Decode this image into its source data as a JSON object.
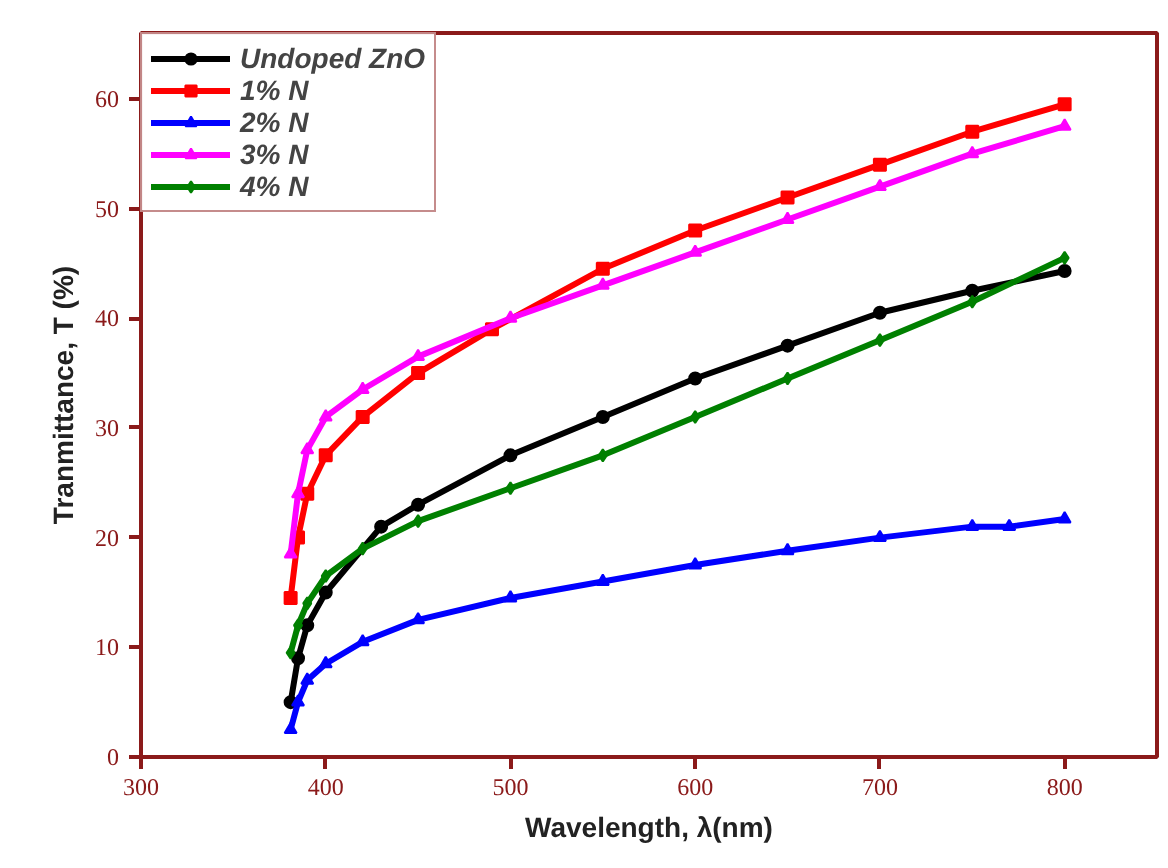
{
  "chart_data": {
    "type": "line",
    "xlabel": "Wavelength, λ(nm)",
    "ylabel": "Tranmittance, T (%)",
    "xlim": [
      300,
      850
    ],
    "xticks": [
      300,
      400,
      500,
      600,
      700,
      800
    ],
    "ylim": [
      0,
      66
    ],
    "yticks": [
      0,
      10,
      20,
      30,
      40,
      50,
      60
    ],
    "grid": false,
    "legend": "top left",
    "series": [
      {
        "name": "Undoped ZnO",
        "color": "#000000",
        "marker": "circle",
        "x": [
          381,
          385,
          390,
          400,
          430,
          450,
          500,
          550,
          600,
          650,
          700,
          750,
          800
        ],
        "values": [
          5,
          9,
          12,
          15,
          21,
          23,
          27.5,
          31,
          34.5,
          37.5,
          40.5,
          42.5,
          44.3
        ]
      },
      {
        "name": "1% N",
        "color": "#ff0000",
        "marker": "square",
        "x": [
          381,
          385,
          390,
          400,
          420,
          450,
          490,
          550,
          600,
          650,
          700,
          750,
          800
        ],
        "values": [
          14.5,
          20,
          24,
          27.5,
          31,
          35,
          39,
          44.5,
          48,
          51,
          54,
          57,
          59.5
        ]
      },
      {
        "name": "2% N",
        "color": "#0000ff",
        "marker": "triangle",
        "x": [
          381,
          385,
          390,
          400,
          420,
          450,
          500,
          550,
          600,
          650,
          700,
          750,
          770,
          800
        ],
        "values": [
          2.5,
          5,
          7,
          8.5,
          10.5,
          12.5,
          14.5,
          16,
          17.5,
          18.8,
          20,
          21,
          21,
          21.7
        ]
      },
      {
        "name": "3% N",
        "color": "#ff00ff",
        "marker": "triangle",
        "x": [
          381,
          385,
          390,
          400,
          420,
          450,
          500,
          550,
          600,
          650,
          700,
          750,
          800
        ],
        "values": [
          18.5,
          24,
          28,
          31,
          33.5,
          36.5,
          40,
          43,
          46,
          49,
          52,
          55,
          57.5
        ]
      },
      {
        "name": "4% N",
        "color": "#008000",
        "marker": "diamond",
        "x": [
          381,
          385,
          390,
          400,
          420,
          450,
          500,
          550,
          600,
          650,
          700,
          750,
          800
        ],
        "values": [
          9.5,
          12,
          14,
          16.5,
          19,
          21.5,
          24.5,
          27.5,
          31,
          34.5,
          38,
          41.5,
          45.5
        ]
      }
    ]
  }
}
